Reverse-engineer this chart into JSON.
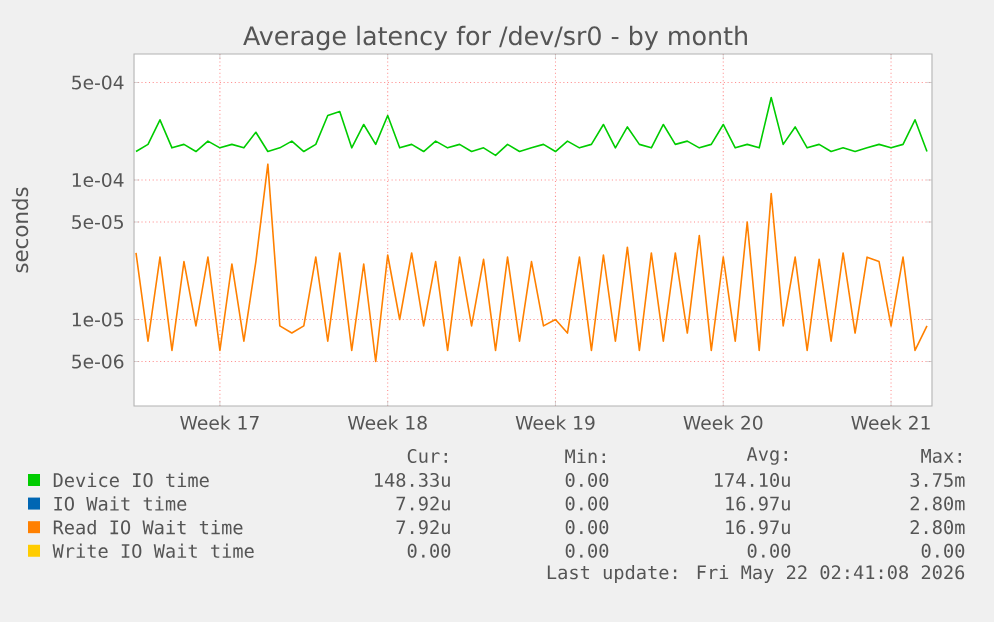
{
  "chart_data": {
    "type": "line",
    "title": "Average latency for /dev/sr0 - by month",
    "ylabel": "seconds",
    "log": "y",
    "grid": true,
    "legend": "bottom",
    "xlim": [
      "2026-04-19T22:00",
      "2026-05-23T05:00"
    ],
    "xticks": [
      {
        "value": "2026-04-23T12:00",
        "label": "Week 17"
      },
      {
        "value": "2026-04-30T12:00",
        "label": "Week 18"
      },
      {
        "value": "2026-05-07T12:00",
        "label": "Week 19"
      },
      {
        "value": "2026-05-14T12:00",
        "label": "Week 20"
      },
      {
        "value": "2026-05-21T12:00",
        "label": "Week 21"
      }
    ],
    "ylim": [
      2.4e-06,
      0.0008
    ],
    "yticks": [
      {
        "value": 5e-06,
        "label": "5e-06"
      },
      {
        "value": 1e-05,
        "label": "1e-05"
      },
      {
        "value": 5e-05,
        "label": "5e-05"
      },
      {
        "value": 0.0001,
        "label": "1e-04"
      },
      {
        "value": 0.0005,
        "label": "5e-04"
      }
    ],
    "x": [
      "2026-04-20T00:00",
      "2026-04-20T12:00",
      "2026-04-21T00:00",
      "2026-04-21T12:00",
      "2026-04-22T00:00",
      "2026-04-22T12:00",
      "2026-04-23T00:00",
      "2026-04-23T12:00",
      "2026-04-24T00:00",
      "2026-04-24T12:00",
      "2026-04-25T00:00",
      "2026-04-25T12:00",
      "2026-04-26T00:00",
      "2026-04-26T12:00",
      "2026-04-27T00:00",
      "2026-04-27T12:00",
      "2026-04-28T00:00",
      "2026-04-28T12:00",
      "2026-04-29T00:00",
      "2026-04-29T12:00",
      "2026-04-30T00:00",
      "2026-04-30T12:00",
      "2026-05-01T00:00",
      "2026-05-01T12:00",
      "2026-05-02T00:00",
      "2026-05-02T12:00",
      "2026-05-03T00:00",
      "2026-05-03T12:00",
      "2026-05-04T00:00",
      "2026-05-04T12:00",
      "2026-05-05T00:00",
      "2026-05-05T12:00",
      "2026-05-06T00:00",
      "2026-05-06T12:00",
      "2026-05-07T00:00",
      "2026-05-07T12:00",
      "2026-05-08T00:00",
      "2026-05-08T12:00",
      "2026-05-09T00:00",
      "2026-05-09T12:00",
      "2026-05-10T00:00",
      "2026-05-10T12:00",
      "2026-05-11T00:00",
      "2026-05-11T12:00",
      "2026-05-12T00:00",
      "2026-05-12T12:00",
      "2026-05-13T00:00",
      "2026-05-13T12:00",
      "2026-05-14T00:00",
      "2026-05-14T12:00",
      "2026-05-15T00:00",
      "2026-05-15T12:00",
      "2026-05-16T00:00",
      "2026-05-16T12:00",
      "2026-05-17T00:00",
      "2026-05-17T12:00",
      "2026-05-18T00:00",
      "2026-05-18T12:00",
      "2026-05-19T00:00",
      "2026-05-19T12:00",
      "2026-05-20T00:00",
      "2026-05-20T12:00",
      "2026-05-21T00:00",
      "2026-05-21T12:00",
      "2026-05-22T00:00",
      "2026-05-22T12:00",
      "2026-05-23T00:00"
    ],
    "series": [
      {
        "name": "Device IO time",
        "color": "#00cc00",
        "values": [
          0.00016,
          0.00018,
          0.00027,
          0.00017,
          0.00018,
          0.00016,
          0.00019,
          0.00017,
          0.00018,
          0.00017,
          0.00022,
          0.00016,
          0.00017,
          0.00019,
          0.00016,
          0.00018,
          0.00029,
          0.00031,
          0.00017,
          0.00025,
          0.00018,
          0.00029,
          0.00017,
          0.00018,
          0.00016,
          0.00019,
          0.00017,
          0.00018,
          0.00016,
          0.00017,
          0.00015,
          0.00018,
          0.00016,
          0.00017,
          0.00018,
          0.00016,
          0.00019,
          0.00017,
          0.00018,
          0.00025,
          0.00017,
          0.00024,
          0.00018,
          0.00017,
          0.00025,
          0.00018,
          0.00019,
          0.00017,
          0.00018,
          0.00025,
          0.00017,
          0.00018,
          0.00017,
          0.00039,
          0.00018,
          0.00024,
          0.00017,
          0.00018,
          0.00016,
          0.00017,
          0.00016,
          0.00017,
          0.00018,
          0.00017,
          0.00018,
          0.00027,
          0.00016
        ]
      },
      {
        "name": "IO Wait time",
        "color": "#0066b3",
        "values": [
          null,
          null,
          null,
          null,
          null,
          null,
          null,
          null,
          null,
          null,
          null,
          null,
          null,
          null,
          null,
          null,
          null,
          null,
          null,
          null,
          null,
          null,
          null,
          null,
          null,
          null,
          null,
          null,
          null,
          null,
          null,
          null,
          null,
          null,
          null,
          null,
          null,
          null,
          null,
          null,
          null,
          null,
          null,
          null,
          null,
          null,
          null,
          null,
          null,
          null,
          null,
          null,
          null,
          null,
          null,
          null,
          null,
          null,
          null,
          null,
          null,
          null,
          null,
          null,
          null,
          null,
          null
        ]
      },
      {
        "name": "Read IO Wait time",
        "color": "#ff8000",
        "values": [
          3e-05,
          7e-06,
          2.8e-05,
          6e-06,
          2.6e-05,
          9e-06,
          2.8e-05,
          6e-06,
          2.5e-05,
          7e-06,
          2.6e-05,
          0.00013,
          9e-06,
          8e-06,
          9e-06,
          2.8e-05,
          7e-06,
          3e-05,
          6e-06,
          2.5e-05,
          5e-06,
          2.9e-05,
          1e-05,
          3e-05,
          9e-06,
          2.6e-05,
          6e-06,
          2.8e-05,
          9e-06,
          2.7e-05,
          6e-06,
          2.8e-05,
          7e-06,
          2.6e-05,
          9e-06,
          1e-05,
          8e-06,
          2.8e-05,
          6e-06,
          2.9e-05,
          7e-06,
          3.3e-05,
          6e-06,
          3e-05,
          7e-06,
          3e-05,
          8e-06,
          4e-05,
          6e-06,
          2.8e-05,
          7e-06,
          5e-05,
          6e-06,
          8e-05,
          9e-06,
          2.8e-05,
          6e-06,
          2.7e-05,
          7e-06,
          3e-05,
          8e-06,
          2.8e-05,
          2.6e-05,
          9e-06,
          2.8e-05,
          6e-06,
          9e-06
        ]
      },
      {
        "name": "Write IO Wait time",
        "color": "#ffcc00",
        "values": [
          null,
          null,
          null,
          null,
          null,
          null,
          null,
          null,
          null,
          null,
          null,
          null,
          null,
          null,
          null,
          null,
          null,
          null,
          null,
          null,
          null,
          null,
          null,
          null,
          null,
          null,
          null,
          null,
          null,
          null,
          null,
          null,
          null,
          null,
          null,
          null,
          null,
          null,
          null,
          null,
          null,
          null,
          null,
          null,
          null,
          null,
          null,
          null,
          null,
          null,
          null,
          null,
          null,
          null,
          null,
          null,
          null,
          null,
          null,
          null,
          null,
          null,
          null,
          null,
          null,
          null,
          null
        ]
      }
    ],
    "annotations": [
      "Cur:",
      "Min:",
      "Avg:",
      "Max:",
      "148.33u",
      "0.00",
      "174.10u",
      "3.75m",
      "7.92u",
      "0.00",
      "16.97u",
      "2.80m",
      "7.92u",
      "0.00",
      "16.97u",
      "2.80m",
      "0.00",
      "0.00",
      "0.00",
      "0.00",
      "Last update: Fri May 22 02:41:08 2026"
    ]
  }
}
